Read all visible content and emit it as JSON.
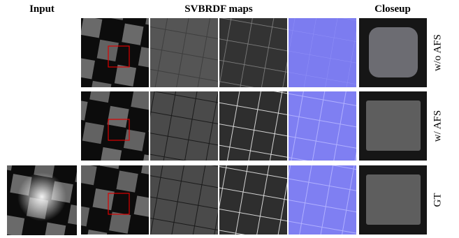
{
  "header": {
    "input": "Input",
    "maps": "SVBRDF maps",
    "closeup": "Closeup"
  },
  "rows": [
    {
      "label": "w/o AFS"
    },
    {
      "label": "w/ AFS"
    },
    {
      "label": "GT"
    }
  ]
}
